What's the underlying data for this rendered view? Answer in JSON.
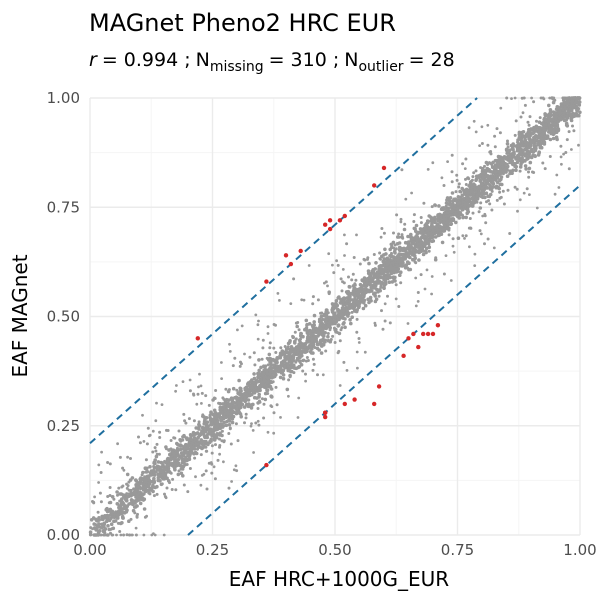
{
  "chart_data": {
    "type": "scatter",
    "title": "MAGnet Pheno2 HRC EUR",
    "subtitle": {
      "r_symbol": "r",
      "r_value": "= 0.994 ;",
      "n_symbol": "N",
      "missing_sub": "missing",
      "missing_value": "= 310 ;",
      "outlier_sub": "outlier",
      "outlier_value": "= 28"
    },
    "xlabel": "EAF HRC+1000G_EUR",
    "ylabel": "EAF MAGnet",
    "xlim": [
      0,
      1
    ],
    "ylim": [
      0,
      1
    ],
    "x_ticks": [
      0,
      0.25,
      0.5,
      0.75,
      1
    ],
    "y_ticks": [
      0,
      0.25,
      0.5,
      0.75,
      1
    ],
    "x_tick_labels": [
      "0.00",
      "0.25",
      "0.50",
      "0.75",
      "1.00"
    ],
    "y_tick_labels": [
      "0.00",
      "0.25",
      "0.50",
      "0.75",
      "1.00"
    ],
    "grid": true,
    "colors": {
      "points": "#999999",
      "outliers": "#d62728",
      "threshold_lines": "#1f6f9f",
      "grid_major": "#ebebeb",
      "grid_minor": "#f5f5f5"
    },
    "threshold_lines": [
      {
        "intercept": 0.21,
        "slope": 1
      },
      {
        "intercept": -0.2,
        "slope": 1
      }
    ],
    "outliers": [
      {
        "x": 0.22,
        "y": 0.45
      },
      {
        "x": 0.36,
        "y": 0.58
      },
      {
        "x": 0.4,
        "y": 0.64
      },
      {
        "x": 0.41,
        "y": 0.62
      },
      {
        "x": 0.43,
        "y": 0.65
      },
      {
        "x": 0.48,
        "y": 0.71
      },
      {
        "x": 0.49,
        "y": 0.72
      },
      {
        "x": 0.49,
        "y": 0.7
      },
      {
        "x": 0.51,
        "y": 0.72
      },
      {
        "x": 0.52,
        "y": 0.73
      },
      {
        "x": 0.58,
        "y": 0.8
      },
      {
        "x": 0.6,
        "y": 0.84
      },
      {
        "x": 0.36,
        "y": 0.16
      },
      {
        "x": 0.48,
        "y": 0.27
      },
      {
        "x": 0.48,
        "y": 0.28
      },
      {
        "x": 0.48,
        "y": 0.28
      },
      {
        "x": 0.52,
        "y": 0.3
      },
      {
        "x": 0.54,
        "y": 0.31
      },
      {
        "x": 0.58,
        "y": 0.3
      },
      {
        "x": 0.59,
        "y": 0.34
      },
      {
        "x": 0.64,
        "y": 0.41
      },
      {
        "x": 0.65,
        "y": 0.45
      },
      {
        "x": 0.66,
        "y": 0.46
      },
      {
        "x": 0.67,
        "y": 0.43
      },
      {
        "x": 0.68,
        "y": 0.46
      },
      {
        "x": 0.69,
        "y": 0.46
      },
      {
        "x": 0.7,
        "y": 0.46
      },
      {
        "x": 0.71,
        "y": 0.48
      }
    ]
  }
}
